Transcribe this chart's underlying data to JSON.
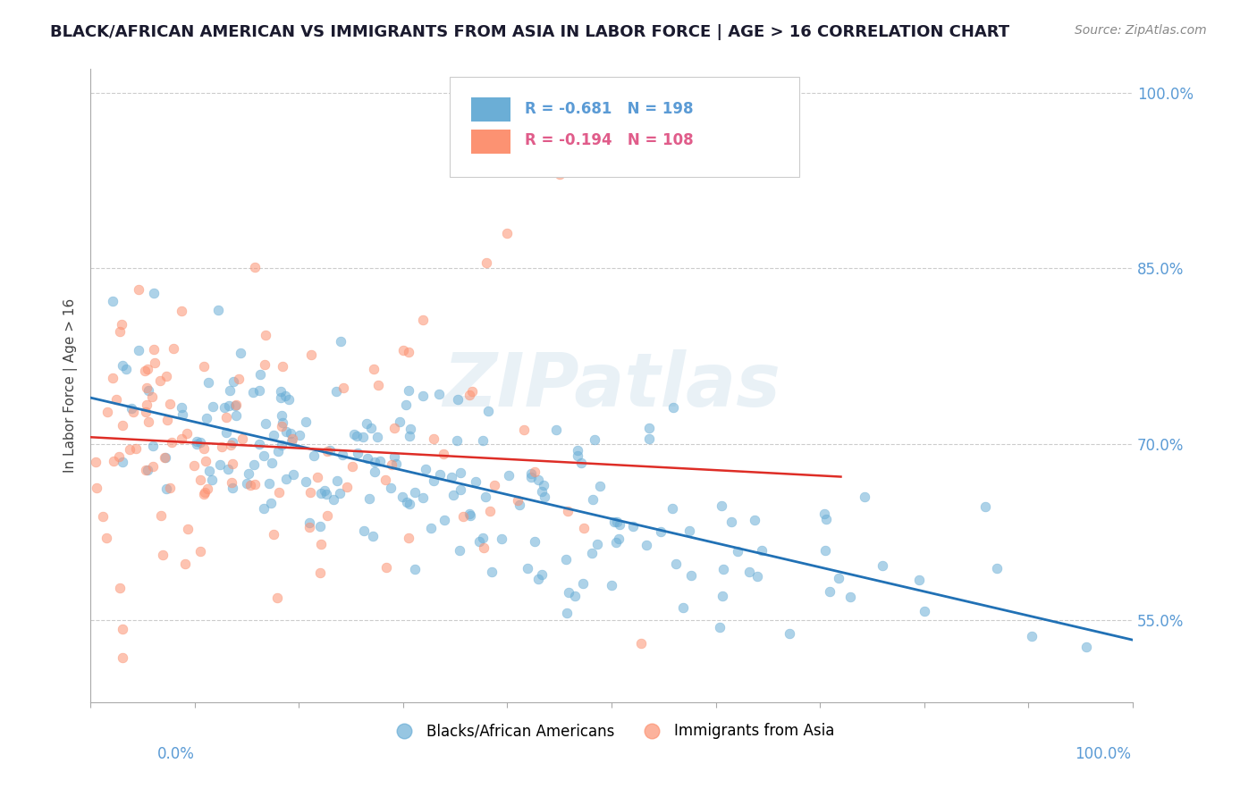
{
  "title": "BLACK/AFRICAN AMERICAN VS IMMIGRANTS FROM ASIA IN LABOR FORCE | AGE > 16 CORRELATION CHART",
  "source": "Source: ZipAtlas.com",
  "ylabel": "In Labor Force | Age > 16",
  "ytick_labels": [
    "55.0%",
    "70.0%",
    "85.0%",
    "100.0%"
  ],
  "ytick_values": [
    0.55,
    0.7,
    0.85,
    1.0
  ],
  "xlim": [
    0.0,
    1.0
  ],
  "ylim": [
    0.48,
    1.02
  ],
  "blue_R": -0.681,
  "blue_N": 198,
  "pink_R": -0.194,
  "pink_N": 108,
  "blue_color": "#6baed6",
  "blue_line_color": "#2171b5",
  "pink_color": "#fc9272",
  "pink_line_color": "#de2d26",
  "legend_label_blue": "Blacks/African Americans",
  "legend_label_pink": "Immigrants from Asia",
  "background_color": "#ffffff",
  "watermark_text": "ZIPatlas",
  "watermark_color": "#c0d8e8",
  "title_color": "#1a1a2e",
  "axis_label_color": "#5b9bd5",
  "grid_color": "#cccccc",
  "seed_blue": 42,
  "seed_pink": 99
}
